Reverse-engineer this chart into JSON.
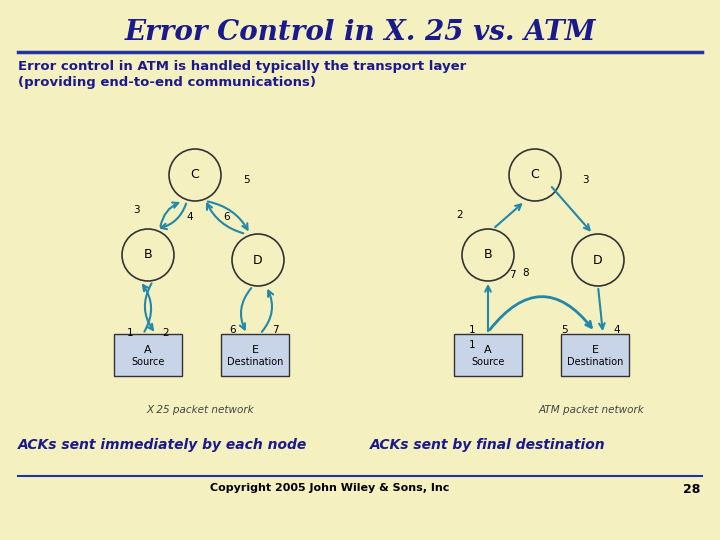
{
  "title": "Error Control in X. 25 vs. ATM",
  "subtitle_line1": "Error control in ATM is handled typically the transport layer",
  "subtitle_line2": "(providing end-to-end communications)",
  "bg_color": "#f5f0c0",
  "title_color": "#1a1a8c",
  "body_color": "#1a1a8c",
  "arrow_color": "#2288aa",
  "node_edge_color": "#333333",
  "box_fill_color": "#c8d4e8",
  "label_left": "ACKs sent immediately by each node",
  "label_right": "ACKs sent by final destination",
  "caption_left": "X 25 packet network",
  "caption_right": "ATM packet network",
  "copyright": "Copyright 2005 John Wiley & Sons, Inc",
  "page_num": "28"
}
